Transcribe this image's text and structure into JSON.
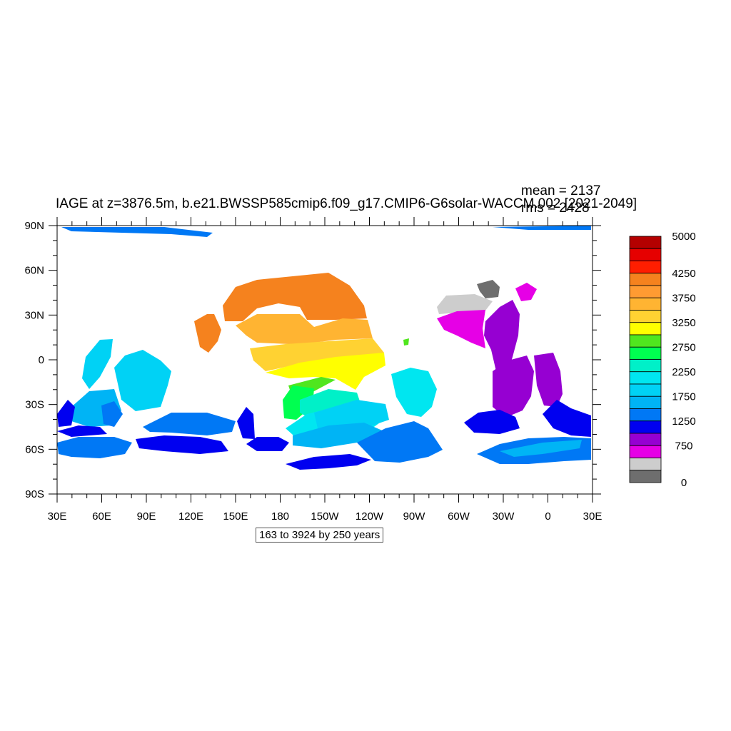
{
  "title": "IAGE at z=3876.5m, b.e21.BWSSP585cmip6.f09_g17.CMIP6-G6solar-WACCM.002 [2021-2049]",
  "stats": {
    "mean": "mean = 2137",
    "rms": "rms = 2428"
  },
  "footnote": "163 to 3924 by 250 years",
  "lat_labels": [
    "90N",
    "60N",
    "30N",
    "0",
    "30S",
    "60S",
    "90S"
  ],
  "lon_labels": [
    "30E",
    "60E",
    "90E",
    "120E",
    "150E",
    "180",
    "150W",
    "120W",
    "90W",
    "60W",
    "30W",
    "0",
    "30E"
  ],
  "colorbar": {
    "labels": [
      "5000",
      "4250",
      "3750",
      "3250",
      "2750",
      "2250",
      "1750",
      "1250",
      "750",
      "0"
    ],
    "colors": [
      "#b40000",
      "#e60000",
      "#ff1e00",
      "#f5821e",
      "#ff9b32",
      "#ffb432",
      "#ffd232",
      "#ffff00",
      "#50e61e",
      "#00ff50",
      "#00f0c8",
      "#00e6f0",
      "#00d2f5",
      "#00b4f5",
      "#0078f5",
      "#0000f0",
      "#9600d2",
      "#e600e6",
      "#cdcdcd",
      "#6e6e6e"
    ]
  },
  "colors": {
    "purple": "#9600d2",
    "magenta": "#e600e6",
    "lightgray": "#cdcdcd",
    "darkgray": "#6e6e6e",
    "blue": "#0000f0",
    "medblue": "#0078f5",
    "skyblue": "#00b4f5",
    "lightcyan": "#00d2f5",
    "cyan": "#00e6f0",
    "aqua": "#00f0c8",
    "green": "#00ff50",
    "lightgreen": "#50e61e",
    "yellow": "#ffff00",
    "gold": "#ffd232",
    "lightorange": "#ffb432",
    "orange": "#f5821e"
  }
}
